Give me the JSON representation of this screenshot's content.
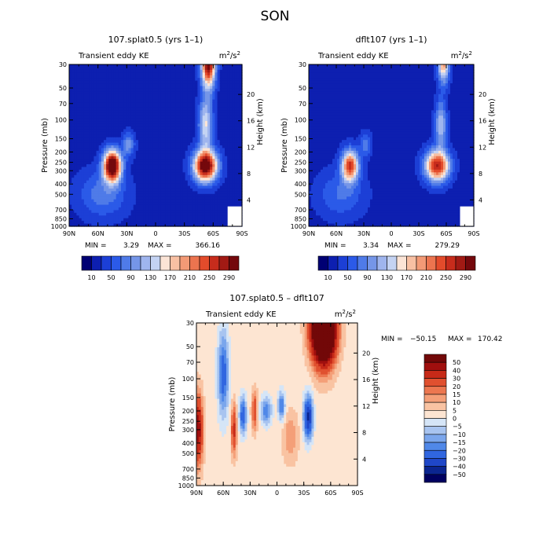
{
  "page_title": "SON",
  "chart_data": [
    {
      "type": "heatmap",
      "id": "top-left",
      "title": "107.splat0.5 (yrs 1–1)",
      "subtitle_left": "Transient eddy KE",
      "units_base": "m",
      "units_sup1": "2",
      "units_mid": "/s",
      "units_sup2": "2",
      "xlabel": "",
      "ylabel": "Pressure (mb)",
      "ylabel_right": "Height (km)",
      "x_ticks": [
        "90N",
        "60N",
        "30N",
        "0",
        "30S",
        "60S",
        "90S"
      ],
      "y_ticks": [
        "30",
        "50",
        "70",
        "100",
        "150",
        "200",
        "250",
        "300",
        "400",
        "500",
        "700",
        "850",
        "1000"
      ],
      "y_ticks_right": [
        "20",
        "16",
        "12",
        "8",
        "4"
      ],
      "min_label": "MIN =",
      "min_value": "3.29",
      "max_label": "MAX =",
      "max_value": "366.16",
      "colorbar_labels": [
        "10",
        "50",
        "90",
        "130",
        "170",
        "210",
        "250",
        "290"
      ],
      "features": [
        {
          "name": "nh-jet-max",
          "lat": 45,
          "p": 270,
          "value": 366
        },
        {
          "name": "sh-jet-max",
          "lat": -50,
          "p": 270,
          "value": 340
        },
        {
          "name": "sh-upper-max",
          "lat": -55,
          "p": 30,
          "value": 320
        }
      ]
    },
    {
      "type": "heatmap",
      "id": "top-right",
      "title": "dflt107 (yrs 1–1)",
      "subtitle_left": "Transient eddy KE",
      "units_base": "m",
      "units_sup1": "2",
      "units_mid": "/s",
      "units_sup2": "2",
      "xlabel": "",
      "ylabel": "Pressure (mb)",
      "ylabel_right": "Height (km)",
      "x_ticks": [
        "90N",
        "60N",
        "30N",
        "0",
        "30S",
        "60S",
        "90S"
      ],
      "y_ticks": [
        "30",
        "50",
        "70",
        "100",
        "150",
        "200",
        "250",
        "300",
        "400",
        "500",
        "700",
        "850",
        "1000"
      ],
      "y_ticks_right": [
        "20",
        "16",
        "12",
        "8",
        "4"
      ],
      "min_label": "MIN =",
      "min_value": "3.34",
      "max_label": "MAX =",
      "max_value": "279.29",
      "colorbar_labels": [
        "10",
        "50",
        "90",
        "130",
        "170",
        "210",
        "250",
        "290"
      ],
      "features": [
        {
          "name": "nh-jet-max",
          "lat": 45,
          "p": 270,
          "value": 260
        },
        {
          "name": "sh-jet-max",
          "lat": -50,
          "p": 270,
          "value": 279
        },
        {
          "name": "sh-upper-max",
          "lat": -55,
          "p": 30,
          "value": 200
        }
      ]
    },
    {
      "type": "heatmap",
      "id": "bottom",
      "title": "107.splat0.5 – dflt107",
      "subtitle_left": "Transient eddy KE",
      "units_base": "m",
      "units_sup1": "2",
      "units_mid": "/s",
      "units_sup2": "2",
      "xlabel": "",
      "ylabel": "Pressure (mb)",
      "ylabel_right": "Height (km)",
      "x_ticks": [
        "90N",
        "60N",
        "30N",
        "0",
        "30S",
        "60S",
        "90S"
      ],
      "y_ticks": [
        "30",
        "50",
        "70",
        "100",
        "150",
        "200",
        "250",
        "300",
        "400",
        "500",
        "700",
        "850",
        "1000"
      ],
      "y_ticks_right": [
        "20",
        "16",
        "12",
        "8",
        "4"
      ],
      "min_label": "MIN =",
      "min_value": "−50.15",
      "max_label": "MAX =",
      "max_value": "170.42",
      "colorbar_labels": [
        "50",
        "40",
        "30",
        "20",
        "15",
        "10",
        "5",
        "0",
        "−5",
        "−10",
        "−15",
        "−20",
        "−30",
        "−40",
        "−50"
      ],
      "features": [
        {
          "name": "sh-upper-max",
          "lat": -50,
          "p": 35,
          "value": 170
        },
        {
          "name": "nh-surface-max",
          "lat": 88,
          "p": 300,
          "value": 45
        },
        {
          "name": "sh-jet-min",
          "lat": -35,
          "p": 230,
          "value": -50
        }
      ]
    }
  ],
  "colors": {
    "abs_scale": [
      "#000073",
      "#0d1fb0",
      "#1c3fd6",
      "#2b5ae8",
      "#4f7be8",
      "#7596e8",
      "#9fb5ee",
      "#c4d3f3",
      "#fbe4d6",
      "#f8c0a3",
      "#f39a76",
      "#ec744f",
      "#e34b2b",
      "#c72c1c",
      "#a11a14",
      "#74080c"
    ],
    "diff_scale": [
      "#000060",
      "#0b2590",
      "#1f47c8",
      "#3066e0",
      "#5088e8",
      "#7ba6ec",
      "#a8c4f0",
      "#d5e5f7",
      "#fde5d2",
      "#f9c3a2",
      "#f49f78",
      "#ec7750",
      "#e0502f",
      "#c72a18",
      "#a00f0e",
      "#720808"
    ]
  }
}
